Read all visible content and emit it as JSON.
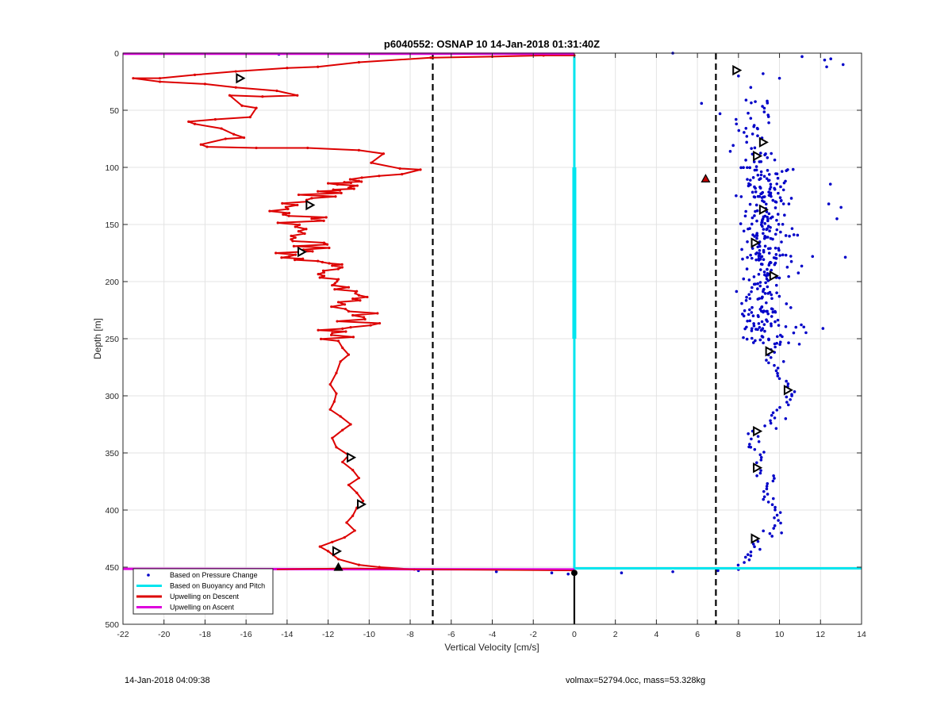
{
  "chart_data": {
    "type": "line",
    "title": "p6040552: OSNAP 10 14-Jan-2018 01:31:40Z",
    "xlabel": "Vertical Velocity [cm/s]",
    "ylabel": "Depth [m]",
    "xlim": [
      -22,
      14
    ],
    "ylim": [
      0,
      500
    ],
    "y_reversed": true,
    "grid": true,
    "xticks": [
      -22,
      -20,
      -18,
      -16,
      -14,
      -12,
      -10,
      -8,
      -6,
      -4,
      -2,
      0,
      2,
      4,
      6,
      8,
      10,
      12,
      14
    ],
    "yticks": [
      0,
      50,
      100,
      150,
      200,
      250,
      300,
      350,
      400,
      450,
      500
    ],
    "legend_position": "bottom-left",
    "reference_lines": {
      "dashed_vertical_x": [
        -6.9,
        6.9
      ],
      "colors": {
        "dashed": "#000000"
      }
    },
    "series": [
      {
        "name": "Based on Pressure Change",
        "style": "scatter",
        "color": "#0000c8",
        "points": [
          [
            -14.4,
            1
          ],
          [
            4.8,
            0
          ],
          [
            11.1,
            3
          ],
          [
            12.2,
            6
          ],
          [
            12.5,
            5
          ],
          [
            13.1,
            10
          ],
          [
            12.3,
            12
          ],
          [
            9.2,
            18
          ],
          [
            8.0,
            20
          ],
          [
            10.0,
            22
          ],
          [
            8.6,
            30
          ],
          [
            9.4,
            42
          ],
          [
            6.2,
            44
          ],
          [
            7.1,
            53
          ],
          [
            7.9,
            62
          ],
          [
            8.4,
            78
          ],
          [
            7.6,
            86
          ],
          [
            9.1,
            95
          ],
          [
            10.4,
            102
          ],
          [
            6.4,
            112
          ],
          [
            9.8,
            130
          ],
          [
            12.4,
            132
          ],
          [
            13.0,
            135
          ],
          [
            12.8,
            145
          ],
          [
            9.6,
            190
          ],
          [
            10.8,
            240
          ],
          [
            10.2,
            270
          ],
          [
            10.6,
            300
          ],
          [
            10.3,
            320
          ],
          [
            8.6,
            345
          ],
          [
            8.9,
            370
          ],
          [
            9.7,
            390
          ],
          [
            10.1,
            420
          ],
          [
            8.6,
            440
          ],
          [
            8.0,
            452
          ],
          [
            7.0,
            453
          ],
          [
            4.8,
            454
          ],
          [
            2.3,
            455
          ],
          [
            -1.1,
            455
          ],
          [
            -3.8,
            454
          ],
          [
            -7.6,
            453
          ],
          [
            -0.3,
            456
          ]
        ]
      },
      {
        "name": "Based on Buoyancy and Pitch",
        "style": "line",
        "color": "#00e5ee",
        "x": [
          0,
          0,
          0,
          0,
          0,
          14
        ],
        "y": [
          3,
          100,
          250,
          451,
          451,
          451
        ]
      },
      {
        "name": "Upwelling on Descent",
        "style": "line",
        "color": "#dd0000",
        "x": [
          0,
          -1.5,
          -4,
          -7,
          -10.5,
          -12.5,
          -14,
          -16.5,
          -18.5,
          -20.2,
          -21.5,
          -20.2,
          -18,
          -16.5,
          -14.5,
          -13.5,
          -15.2,
          -16.8,
          -16.2,
          -15.5,
          -15.8,
          -17.5,
          -18.8,
          -18.5,
          -17.2,
          -16.6,
          -16.1,
          -17.0,
          -18.2,
          -17.9,
          -15.5,
          -13.0,
          -10.5,
          -9.3,
          -9.9,
          -8.5,
          -7.5,
          -8.4,
          -10.5,
          -12.0,
          -11.0,
          -12.5,
          -12.8,
          -13.5,
          -13.9,
          -12.8,
          -13.6,
          -13.8,
          -12.2,
          -13.2,
          -13.9,
          -12.5,
          -11.8,
          -12.2,
          -11.5,
          -11.0,
          -10.5,
          -11.5,
          -11.0,
          -10.2,
          -10.9,
          -11.8,
          -11.5,
          -11.3,
          -11.0,
          -11.4,
          -11.6,
          -11.9,
          -11.6,
          -11.7,
          -11.9,
          -11.4,
          -10.9,
          -11.3,
          -11.8,
          -11.6,
          -11.0,
          -11.3,
          -10.8,
          -10.5,
          -11.0,
          -10.6,
          -10.3,
          -10.6,
          -10.8,
          -11.1,
          -10.7,
          -11.2,
          -11.8,
          -12.4,
          -12.0,
          -11.5,
          -10.5,
          -9.5,
          -7.8
        ],
        "y": [
          2,
          2,
          3,
          4,
          8,
          12,
          13,
          16,
          19,
          22,
          22,
          25,
          27,
          30,
          33,
          37,
          38,
          37,
          46,
          48,
          56,
          58,
          60,
          62,
          66,
          71,
          74,
          75,
          80,
          82,
          83,
          83,
          85,
          88,
          96,
          101,
          102,
          106,
          112,
          114,
          118,
          121,
          127,
          133,
          140,
          145,
          152,
          160,
          166,
          172,
          178,
          182,
          186,
          192,
          198,
          205,
          212,
          218,
          226,
          233,
          240,
          245,
          252,
          258,
          264,
          270,
          280,
          290,
          298,
          305,
          312,
          318,
          325,
          330,
          337,
          345,
          352,
          358,
          365,
          372,
          378,
          385,
          392,
          398,
          405,
          411,
          418,
          424,
          428,
          432,
          436,
          443,
          448,
          450,
          452
        ]
      },
      {
        "name": "Upwelling on Ascent",
        "style": "line",
        "color": "#dd00dd",
        "x": [
          -22,
          -20,
          0,
          0,
          -11.5,
          -14.5,
          0
        ],
        "y": [
          0.5,
          0.5,
          0.5,
          452,
          451,
          452,
          453
        ]
      }
    ],
    "markers": {
      "open_triangles_left": [
        [
          -16.3,
          22
        ],
        [
          -12.9,
          133
        ],
        [
          -13.3,
          174
        ],
        [
          -10.9,
          354
        ],
        [
          -10.4,
          395
        ],
        [
          -11.6,
          436
        ],
        [
          7.9,
          15
        ],
        [
          9.2,
          78
        ],
        [
          8.9,
          90
        ],
        [
          9.2,
          137
        ],
        [
          8.8,
          166
        ],
        [
          9.7,
          195
        ],
        [
          9.5,
          261
        ],
        [
          10.4,
          295
        ],
        [
          8.9,
          331
        ],
        [
          8.9,
          363
        ],
        [
          8.8,
          425
        ]
      ],
      "filled_triangles": [
        [
          -11.5,
          450
        ],
        [
          6.4,
          110
        ],
        [
          0,
          455
        ]
      ],
      "colors": {
        "open": "#000000",
        "filled_left": "#000000",
        "filled_right": "#c00000"
      }
    }
  },
  "footer": {
    "left_text": "14-Jan-2018 04:09:38",
    "right_text": "volmax=52794.0cc, mass=53.328kg"
  }
}
